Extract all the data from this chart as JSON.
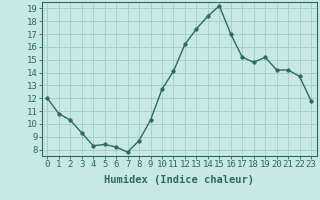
{
  "x": [
    0,
    1,
    2,
    3,
    4,
    5,
    6,
    7,
    8,
    9,
    10,
    11,
    12,
    13,
    14,
    15,
    16,
    17,
    18,
    19,
    20,
    21,
    22,
    23
  ],
  "y": [
    12.0,
    10.8,
    10.3,
    9.3,
    8.3,
    8.4,
    8.2,
    7.8,
    8.7,
    10.3,
    12.7,
    14.1,
    16.2,
    17.4,
    18.4,
    19.2,
    17.0,
    15.2,
    14.8,
    15.2,
    14.2,
    14.2,
    13.7,
    11.8
  ],
  "xlabel": "Humidex (Indice chaleur)",
  "xlim": [
    -0.5,
    23.5
  ],
  "ylim": [
    7.5,
    19.5
  ],
  "yticks": [
    8,
    9,
    10,
    11,
    12,
    13,
    14,
    15,
    16,
    17,
    18,
    19
  ],
  "xticks": [
    0,
    1,
    2,
    3,
    4,
    5,
    6,
    7,
    8,
    9,
    10,
    11,
    12,
    13,
    14,
    15,
    16,
    17,
    18,
    19,
    20,
    21,
    22,
    23
  ],
  "xtick_labels": [
    "0",
    "1",
    "2",
    "3",
    "4",
    "5",
    "6",
    "7",
    "8",
    "9",
    "10",
    "11",
    "12",
    "13",
    "14",
    "15",
    "16",
    "17",
    "18",
    "19",
    "20",
    "21",
    "22",
    "23"
  ],
  "line_color": "#2d6b5e",
  "marker_color": "#2d6b5e",
  "bg_color": "#c8e8e8",
  "grid_color": "#a8d0d0",
  "axis_color": "#2d6b5e",
  "label_color": "#2d6b5e",
  "tick_fontsize": 6.5,
  "xlabel_fontsize": 7.5,
  "marker_size": 2.5,
  "linewidth": 1.0
}
